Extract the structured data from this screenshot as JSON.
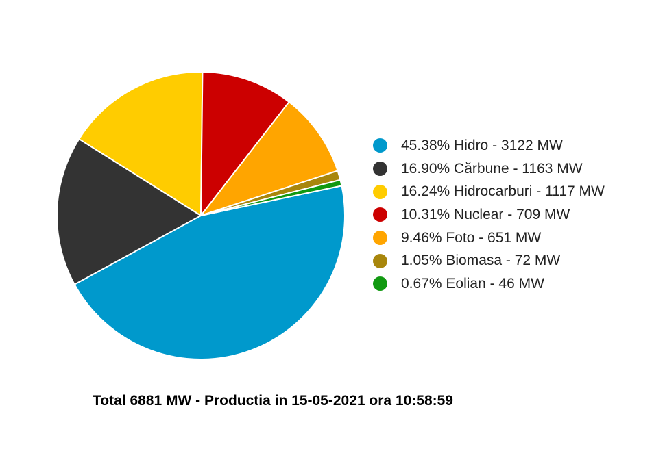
{
  "chart_data": {
    "type": "pie",
    "slices": [
      {
        "name": "Hidro",
        "percent": 45.38,
        "value": 3122,
        "unit": "MW",
        "color": "#0099cc",
        "label": "45.38% Hidro - 3122 MW"
      },
      {
        "name": "Cărbune",
        "percent": 16.9,
        "value": 1163,
        "unit": "MW",
        "color": "#333333",
        "label": "16.90% Cărbune - 1163 MW"
      },
      {
        "name": "Hidrocarburi",
        "percent": 16.24,
        "value": 1117,
        "unit": "MW",
        "color": "#ffcc00",
        "label": "16.24% Hidrocarburi - 1117 MW"
      },
      {
        "name": "Nuclear",
        "percent": 10.31,
        "value": 709,
        "unit": "MW",
        "color": "#cc0000",
        "label": "10.31% Nuclear - 709 MW"
      },
      {
        "name": "Foto",
        "percent": 9.46,
        "value": 651,
        "unit": "MW",
        "color": "#ffa500",
        "label": "9.46% Foto - 651 MW"
      },
      {
        "name": "Biomasa",
        "percent": 1.05,
        "value": 72,
        "unit": "MW",
        "color": "#a8860c",
        "label": "1.05% Biomasa - 72 MW"
      },
      {
        "name": "Eolian",
        "percent": 0.67,
        "value": 46,
        "unit": "MW",
        "color": "#119911",
        "label": "0.67% Eolian - 46 MW"
      }
    ],
    "legend_position": "right",
    "caption": "Total 6881 MW - Productia in 15-05-2021 ora 10:58:59"
  }
}
